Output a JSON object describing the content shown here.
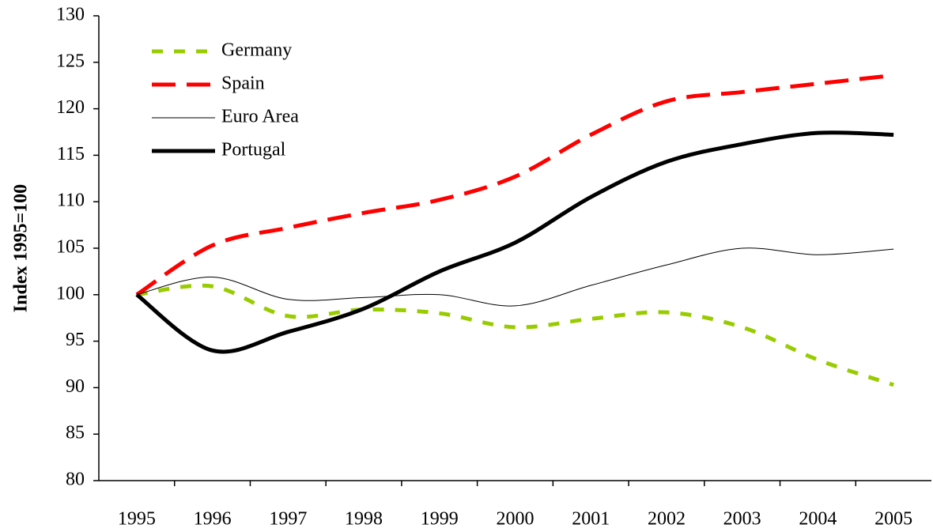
{
  "chart_data": {
    "type": "line",
    "y_label": "Index 1995=100",
    "categories": [
      "1995",
      "1996",
      "1997",
      "1998",
      "1999",
      "2000",
      "2001",
      "2002",
      "2003",
      "2004",
      "2005"
    ],
    "series": [
      {
        "name": "Germany",
        "color": "#99cc00",
        "linestyle": "dashed",
        "linewidth": "thick",
        "values": [
          100,
          100.9,
          97.7,
          98.4,
          98.0,
          96.5,
          97.4,
          98.1,
          96.5,
          93.0,
          90.3
        ]
      },
      {
        "name": "Spain",
        "color": "#ff0000",
        "linestyle": "long-dashed",
        "linewidth": "thick",
        "values": [
          100,
          105.3,
          107.2,
          108.8,
          110.2,
          112.7,
          117.2,
          120.8,
          121.8,
          122.7,
          123.6
        ]
      },
      {
        "name": "Euro Area",
        "color": "#000000",
        "linestyle": "solid",
        "linewidth": "thin",
        "values": [
          100,
          101.9,
          99.5,
          99.7,
          100.0,
          98.8,
          101.0,
          103.2,
          105.0,
          104.3,
          104.9
        ]
      },
      {
        "name": "Portugal",
        "color": "#000000",
        "linestyle": "solid",
        "linewidth": "thick",
        "values": [
          100,
          94.0,
          96.0,
          98.5,
          102.5,
          105.6,
          110.5,
          114.3,
          116.2,
          117.4,
          117.2
        ]
      }
    ],
    "ylim": [
      80,
      130
    ],
    "yticks": [
      80,
      85,
      90,
      95,
      100,
      105,
      110,
      115,
      120,
      125,
      130
    ],
    "grid": false,
    "legend": "upper left"
  }
}
